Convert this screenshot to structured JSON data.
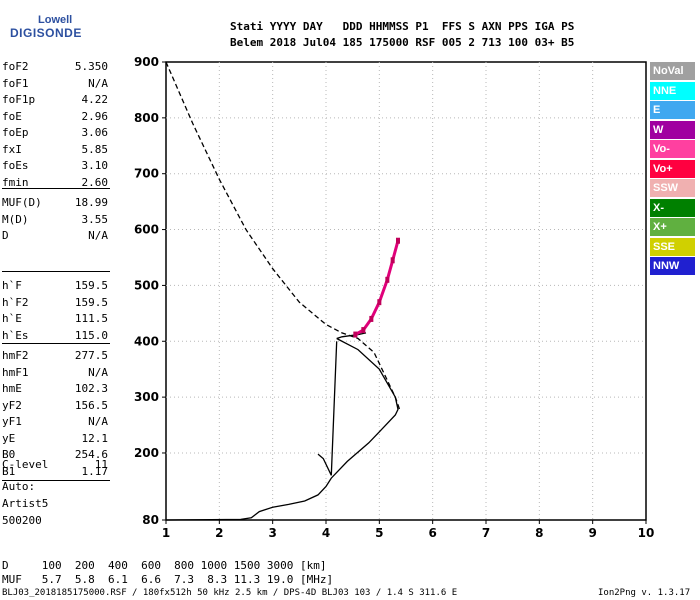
{
  "logo": {
    "line1": "Lowell",
    "line2": "DIGISONDE"
  },
  "header": {
    "row1": "Stati YYYY DAY   DDD HHMMSS P1  FFS S AXN PPS IGA PS",
    "row2": "Belem 2018 Jul04 185 175000 RSF 005 2 713 100 03+ B5"
  },
  "params_group1": [
    {
      "name": "foF2",
      "value": "5.350"
    },
    {
      "name": "foF1",
      "value": "N/A"
    },
    {
      "name": "foF1p",
      "value": "4.22"
    },
    {
      "name": "foE",
      "value": "2.96"
    },
    {
      "name": "foEp",
      "value": "3.06"
    },
    {
      "name": "fxI",
      "value": "5.85"
    },
    {
      "name": "foEs",
      "value": "3.10"
    },
    {
      "name": "fmin",
      "value": "2.60"
    }
  ],
  "params_group2": [
    {
      "name": "MUF(D)",
      "value": "18.99"
    },
    {
      "name": "M(D)",
      "value": "3.55"
    },
    {
      "name": "D",
      "value": "N/A"
    }
  ],
  "params_group3": [
    {
      "name": "h`F",
      "value": "159.5"
    },
    {
      "name": "h`F2",
      "value": "159.5"
    },
    {
      "name": "h`E",
      "value": "111.5"
    },
    {
      "name": "h`Es",
      "value": "115.0"
    }
  ],
  "params_group4": [
    {
      "name": "hmF2",
      "value": "277.5"
    },
    {
      "name": "hmF1",
      "value": "N/A"
    },
    {
      "name": "hmE",
      "value": "102.3"
    },
    {
      "name": "yF2",
      "value": "156.5"
    },
    {
      "name": "yF1",
      "value": "N/A"
    },
    {
      "name": "yE",
      "value": "12.1"
    },
    {
      "name": "B0",
      "value": "254.6"
    },
    {
      "name": "B1",
      "value": "1.17"
    }
  ],
  "clevel": {
    "name": "C-level",
    "value": "11"
  },
  "auto": {
    "line1": "Auto:",
    "line2": "Artist5",
    "line3": "500200"
  },
  "legend": [
    {
      "label": "NoVal",
      "color": "#a0a0a0"
    },
    {
      "label": "NNE",
      "color": "#00ffff"
    },
    {
      "label": "E",
      "color": "#40a8f0"
    },
    {
      "label": "W",
      "color": "#a000a0"
    },
    {
      "label": "Vo-",
      "color": "#ff40a0"
    },
    {
      "label": "Vo+",
      "color": "#ff0040"
    },
    {
      "label": "SSW",
      "color": "#f0b0b0"
    },
    {
      "label": "X-",
      "color": "#008000"
    },
    {
      "label": "X+",
      "color": "#60b040"
    },
    {
      "label": "SSE",
      "color": "#d0d000"
    },
    {
      "label": "NNW",
      "color": "#2020d0"
    }
  ],
  "dtable": {
    "row1": "D     100  200  400  600  800 1000 1500 3000 [km]",
    "row2": "MUF   5.7  5.8  6.1  6.6  7.3  8.3 11.3 19.0 [MHz]"
  },
  "status": {
    "left": "BLJ03_2018185175000.RSF / 180fx512h 50 kHz 2.5 km / DPS-4D BLJ03 103 / 1.4 S 311.6 E",
    "right": "Ion2Png v. 1.3.17"
  },
  "chart_data": {
    "type": "scatter",
    "xlim": [
      1,
      10
    ],
    "ylim": [
      80,
      900
    ],
    "xticks": [
      "1",
      "2",
      "3",
      "4",
      "5",
      "6",
      "7",
      "8",
      "9",
      "10"
    ],
    "yticks": [
      "80",
      "200",
      "300",
      "400",
      "500",
      "600",
      "700",
      "800",
      "900"
    ],
    "grid": true,
    "series": [
      {
        "style": "solid",
        "x": [
          1.0,
          2.4,
          2.6,
          2.75,
          3.0,
          3.3,
          3.6,
          3.85,
          4.0,
          4.1,
          4.4,
          4.8,
          5.1,
          5.3,
          5.35,
          5.3,
          5.0,
          4.6,
          4.2
        ],
        "y": [
          80,
          81,
          84,
          95,
          103,
          108,
          114,
          125,
          140,
          155,
          185,
          218,
          248,
          268,
          278,
          300,
          350,
          385,
          405
        ]
      },
      {
        "style": "solid",
        "x": [
          4.2,
          4.3,
          4.45,
          4.6,
          4.75
        ],
        "y": [
          405,
          408,
          410,
          412,
          415
        ]
      },
      {
        "style": "solid",
        "x": [
          3.85,
          3.95,
          4.1,
          4.15,
          4.2
        ],
        "y": [
          198,
          190,
          160,
          280,
          400
        ]
      },
      {
        "style": "dashed",
        "x": [
          1.0,
          1.5,
          2.0,
          2.5,
          3.0,
          3.5,
          4.0,
          4.3,
          4.6,
          4.9,
          5.1,
          5.3,
          5.38
        ],
        "y": [
          900,
          790,
          690,
          600,
          530,
          470,
          430,
          415,
          405,
          380,
          340,
          300,
          278
        ]
      },
      {
        "style": "trace",
        "x": [
          4.55,
          4.7,
          4.85,
          5.0,
          5.15,
          5.25,
          5.35
        ],
        "y": [
          412,
          420,
          440,
          470,
          510,
          545,
          580
        ]
      }
    ]
  }
}
